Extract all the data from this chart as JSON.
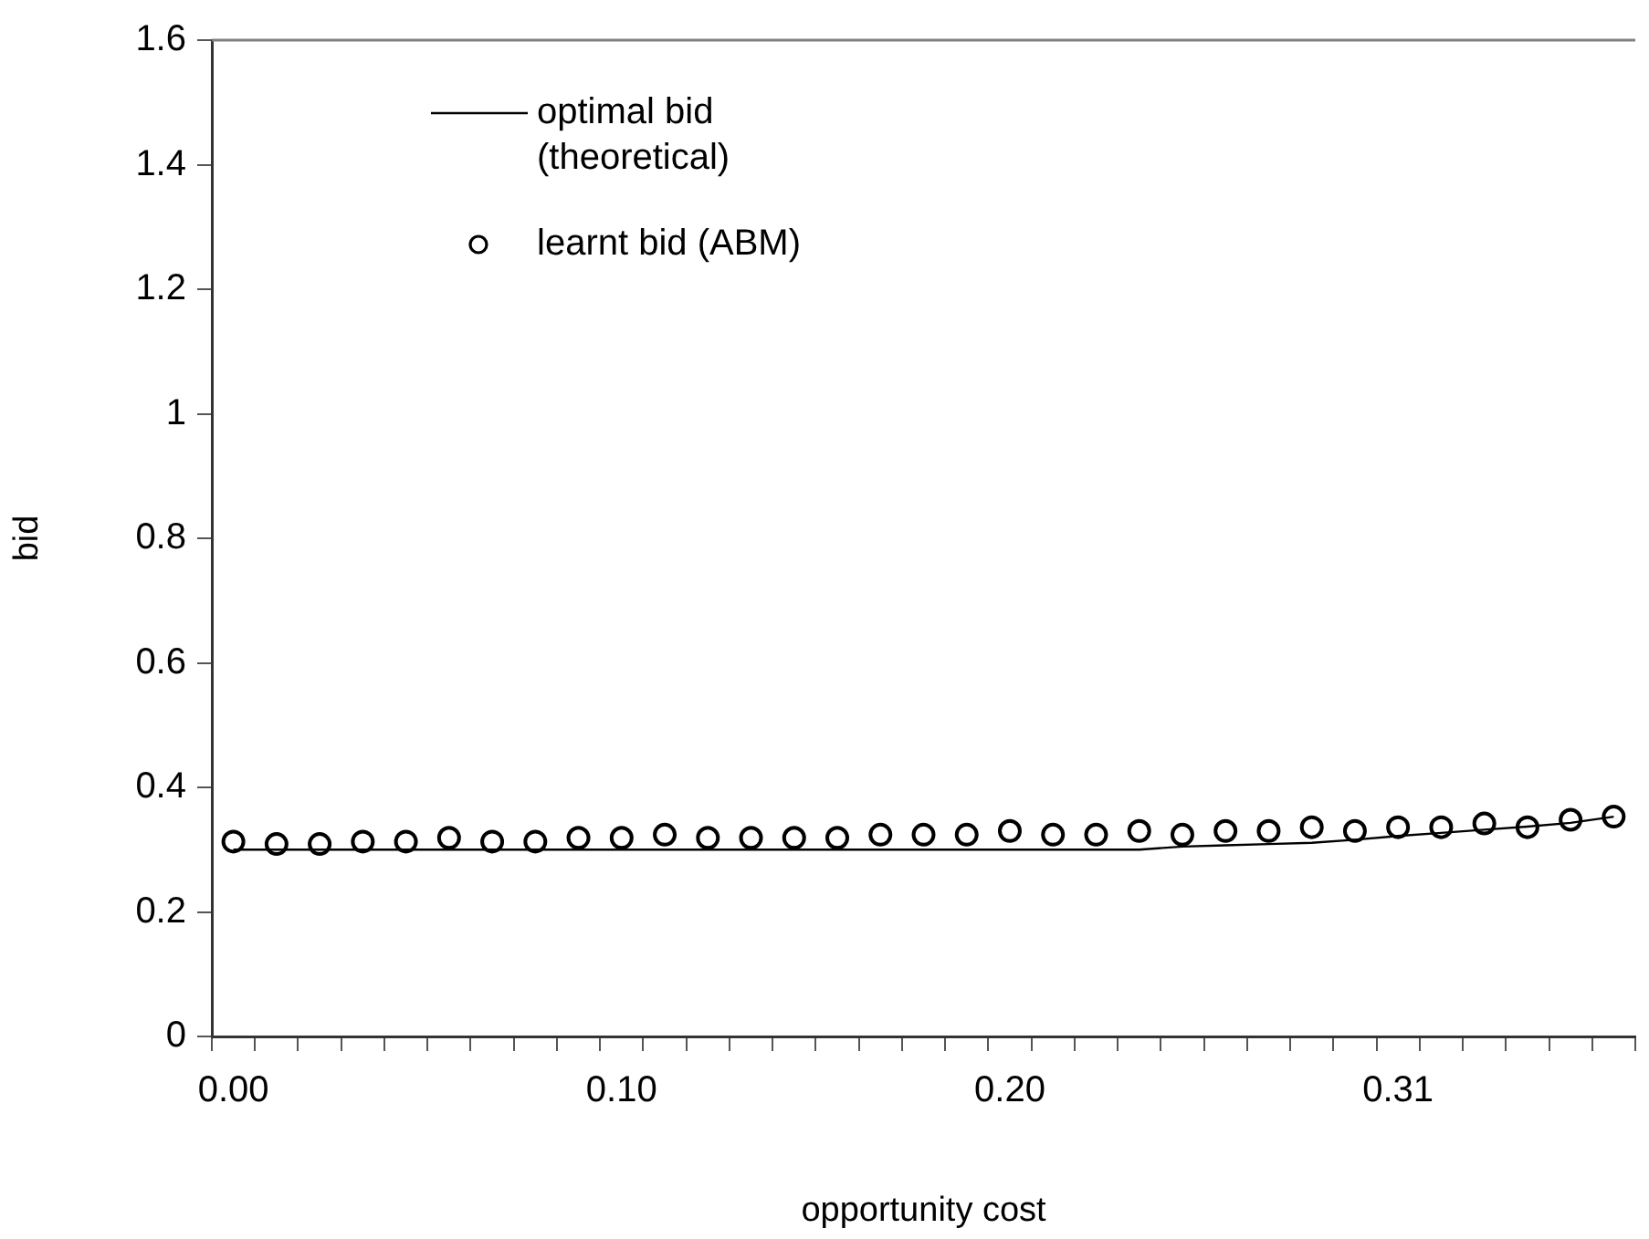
{
  "chart_data": {
    "type": "line",
    "xlabel": "opportunity cost",
    "ylabel": "bid",
    "categories": [
      "0.00",
      null,
      null,
      null,
      null,
      null,
      null,
      null,
      null,
      "0.10",
      null,
      null,
      null,
      null,
      null,
      null,
      null,
      null,
      "0.20",
      null,
      null,
      null,
      null,
      null,
      null,
      null,
      null,
      "0.31",
      null,
      null,
      null,
      null,
      null
    ],
    "series": [
      {
        "name": "optimal bid (theoretical)",
        "type": "line",
        "color": "#000000",
        "marker": "none",
        "line_style": "solid",
        "values": [
          0.3,
          0.3,
          0.3,
          0.3,
          0.3,
          0.3,
          0.3,
          0.3,
          0.3,
          0.3,
          0.3,
          0.3,
          0.3,
          0.3,
          0.3,
          0.3,
          0.3,
          0.3,
          0.3,
          0.3,
          0.3,
          0.3,
          0.305,
          0.307,
          0.309,
          0.311,
          0.316,
          0.322,
          0.327,
          0.332,
          0.337,
          0.343,
          0.353
        ]
      },
      {
        "name": "learnt bid (ABM)",
        "type": "scatter",
        "color": "#000000",
        "marker": "circle",
        "values": [
          0.313,
          0.309,
          0.309,
          0.313,
          0.313,
          0.319,
          0.313,
          0.313,
          0.319,
          0.319,
          0.324,
          0.319,
          0.319,
          0.319,
          0.319,
          0.324,
          0.324,
          0.324,
          0.33,
          0.324,
          0.324,
          0.33,
          0.324,
          0.33,
          0.33,
          0.336,
          0.33,
          0.336,
          0.336,
          0.342,
          0.336,
          0.348,
          0.353
        ]
      }
    ],
    "ylim": [
      0,
      1.6
    ],
    "yticks": [
      0,
      0.2,
      0.4,
      0.6,
      0.8,
      1,
      1.2,
      1.4,
      1.6
    ],
    "grid": false,
    "legend": "top left"
  }
}
